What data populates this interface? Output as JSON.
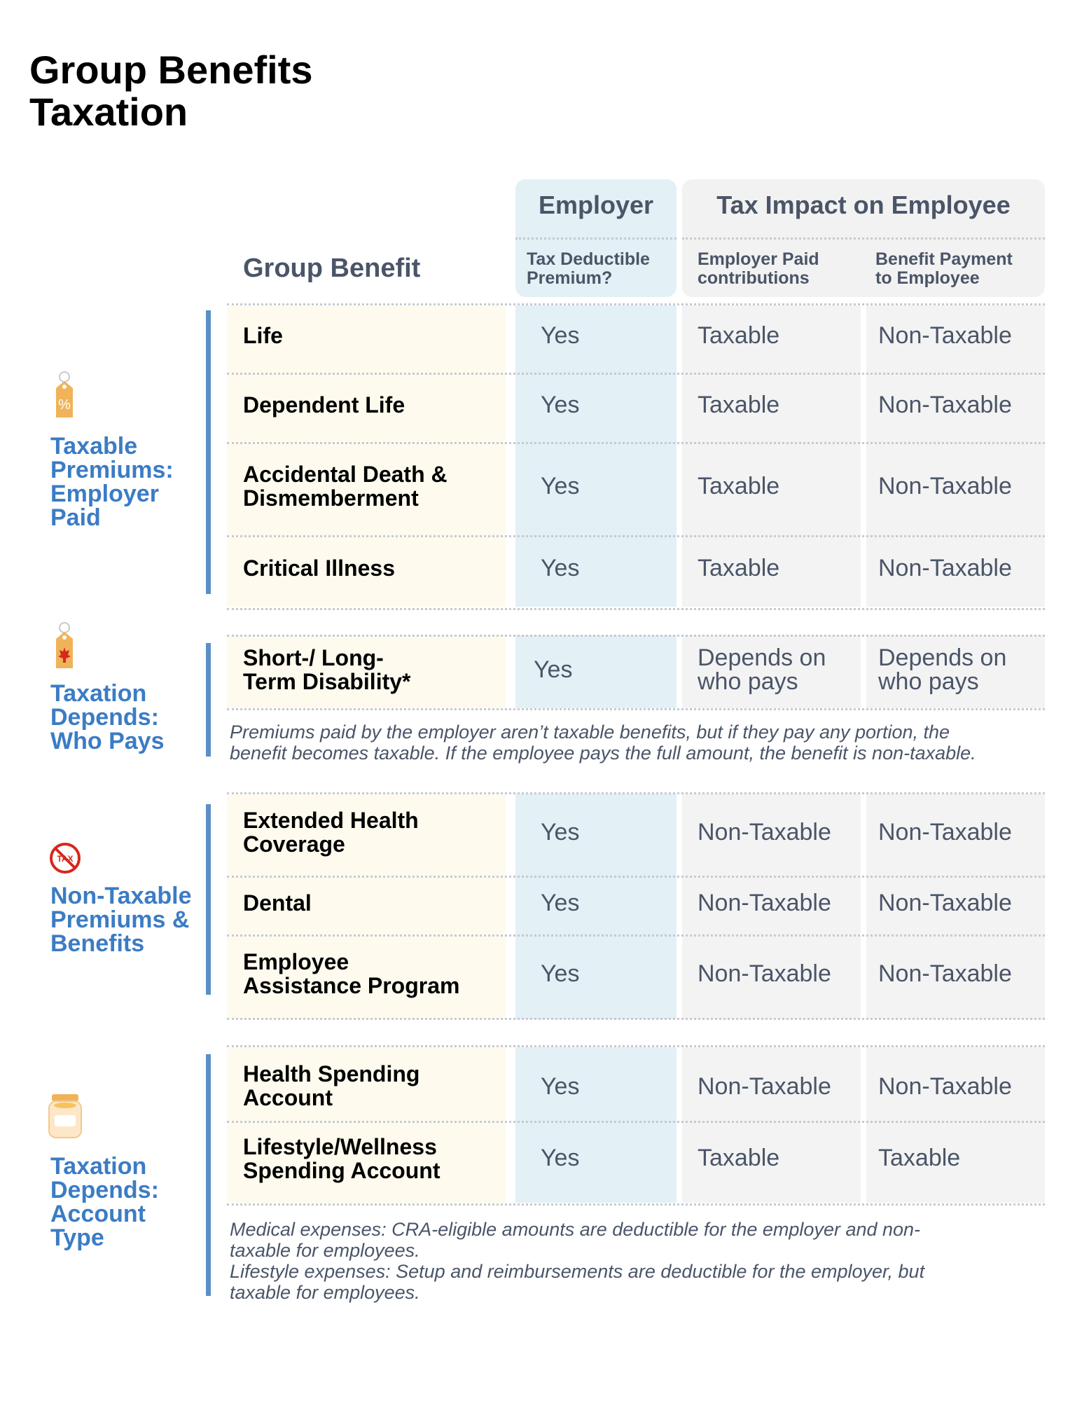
{
  "title_line1": "Group Benefits",
  "title_line2": "Taxation",
  "header": {
    "employer": "Employer",
    "tax_impact": "Tax Impact on Employee",
    "group_benefit": "Group Benefit",
    "col1": [
      "Tax Deductible",
      "Premium?"
    ],
    "col2": [
      "Employer Paid",
      "contributions"
    ],
    "col3": [
      "Benefit Payment",
      "to Employee"
    ]
  },
  "sections": [
    {
      "label": [
        "Taxable",
        "Premiums:",
        "Employer",
        "Paid"
      ],
      "icon": "percent-tag-icon",
      "rows": [
        {
          "benefit": [
            "Life"
          ],
          "deductible": "Yes",
          "employer_paid": [
            "Taxable"
          ],
          "benefit_payment": [
            "Non-Taxable"
          ]
        },
        {
          "benefit": [
            "Dependent Life"
          ],
          "deductible": "Yes",
          "employer_paid": [
            "Taxable"
          ],
          "benefit_payment": [
            "Non-Taxable"
          ]
        },
        {
          "benefit": [
            "Accidental Death &",
            "Dismemberment"
          ],
          "deductible": "Yes",
          "employer_paid": [
            "Taxable"
          ],
          "benefit_payment": [
            "Non-Taxable"
          ]
        },
        {
          "benefit": [
            "Critical Illness"
          ],
          "deductible": "Yes",
          "employer_paid": [
            "Taxable"
          ],
          "benefit_payment": [
            "Non-Taxable"
          ]
        }
      ]
    },
    {
      "label": [
        "Taxation",
        "Depends:",
        "Who Pays"
      ],
      "icon": "maple-leaf-tag-icon",
      "rows": [
        {
          "benefit": [
            "Short-/ Long-",
            "Term Disability*"
          ],
          "deductible": "Yes",
          "employer_paid": [
            "Depends on",
            "who pays"
          ],
          "benefit_payment": [
            "Depends on",
            "who pays"
          ]
        }
      ],
      "note": [
        "Premiums paid by the employer aren’t taxable benefits, but if they pay any portion, the",
        "benefit becomes taxable. If the employee pays the full amount, the benefit is non-taxable."
      ]
    },
    {
      "label": [
        "Non-Taxable",
        "Premiums &",
        "Benefits"
      ],
      "icon": "no-tax-icon",
      "rows": [
        {
          "benefit": [
            "Extended Health",
            "Coverage"
          ],
          "deductible": "Yes",
          "employer_paid": [
            "Non-Taxable"
          ],
          "benefit_payment": [
            "Non-Taxable"
          ]
        },
        {
          "benefit": [
            "Dental"
          ],
          "deductible": "Yes",
          "employer_paid": [
            "Non-Taxable"
          ],
          "benefit_payment": [
            "Non-Taxable"
          ]
        },
        {
          "benefit": [
            "Employee",
            "Assistance Program"
          ],
          "deductible": "Yes",
          "employer_paid": [
            "Non-Taxable"
          ],
          "benefit_payment": [
            "Non-Taxable"
          ]
        }
      ]
    },
    {
      "label": [
        "Taxation",
        "Depends:",
        "Account",
        "Type"
      ],
      "icon": "coin-jar-icon",
      "rows": [
        {
          "benefit": [
            "Health Spending",
            "Account"
          ],
          "deductible": "Yes",
          "employer_paid": [
            "Non-Taxable"
          ],
          "benefit_payment": [
            "Non-Taxable"
          ]
        },
        {
          "benefit": [
            "Lifestyle/Wellness",
            "Spending Account"
          ],
          "deductible": "Yes",
          "employer_paid": [
            "Taxable"
          ],
          "benefit_payment": [
            "Taxable"
          ]
        }
      ],
      "note": [
        "Medical expenses: CRA-eligible amounts are deductible for the employer and non-",
        "taxable for employees.",
        "Lifestyle expenses: Setup and reimbursements are deductible for the employer, but",
        "taxable for employees."
      ]
    }
  ]
}
